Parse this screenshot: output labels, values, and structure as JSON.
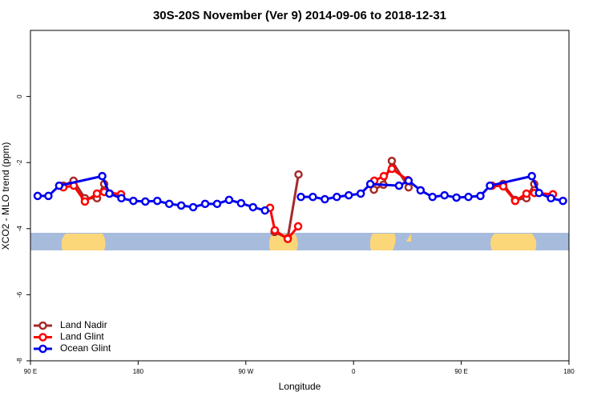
{
  "chart_data": {
    "type": "line",
    "title": "30S-20S November (Ver 9)   2014-09-06 to 2018-12-31",
    "xlabel": "Longitude",
    "ylabel": "XCO2 - MLO trend (ppm)",
    "xlim": [
      90,
      540
    ],
    "ylim": [
      -8,
      2
    ],
    "xticks": [
      {
        "value": 90,
        "label": "90 E"
      },
      180,
      {
        "value": 270,
        "label": "90 W"
      },
      {
        "value": 360,
        "label": "0"
      },
      {
        "value": 450,
        "label": "90 E"
      },
      {
        "value": 540,
        "label": "180"
      }
    ],
    "yticks": [
      -8,
      -6,
      -4,
      -2,
      0
    ],
    "legend": "lower left",
    "series": [
      {
        "name": "Land Nadir",
        "color": "#a52a2a",
        "x": [
          117.5,
          126,
          135.5,
          145.6,
          151.6,
          156.3,
          null,
          294,
          305,
          314,
          null,
          377,
          385,
          392,
          406,
          null,
          485,
          495,
          504.5,
          511
        ],
        "values": [
          -2.7,
          -2.55,
          -3.08,
          -3.08,
          -2.65,
          -2.94,
          null,
          -4.1,
          -4.29,
          -2.36,
          null,
          -2.82,
          -2.67,
          -1.95,
          -2.75,
          null,
          -2.65,
          -3.13,
          -3.08,
          -2.65
        ]
      },
      {
        "name": "Land Glint",
        "color": "#ff0000",
        "x": [
          117.5,
          126.2,
          135.5,
          145.6,
          151.6,
          165.7,
          null,
          290.2,
          294.2,
          305,
          313.7,
          null,
          377.3,
          385.3,
          392,
          405.4,
          null,
          475.7,
          485.1,
          495.1,
          504.5,
          511.2,
          526.6
        ],
        "values": [
          -2.75,
          -2.7,
          -3.18,
          -2.94,
          -2.89,
          -2.96,
          null,
          -3.37,
          -4.05,
          -4.31,
          -3.93,
          null,
          -2.55,
          -2.41,
          -2.19,
          -2.53,
          null,
          -2.7,
          -2.72,
          -3.16,
          -2.94,
          -2.92,
          -2.96
        ]
      },
      {
        "name": "Ocean Glint",
        "color": "#0000ee",
        "x": [
          96,
          105,
          114,
          150,
          156,
          166,
          176,
          186,
          196,
          206,
          216,
          226,
          236,
          246,
          256,
          266,
          276,
          286,
          null,
          316,
          326,
          336,
          346,
          356,
          366,
          374,
          398,
          406,
          416,
          426,
          436,
          446,
          456,
          466,
          474,
          509,
          515,
          525,
          535
        ],
        "values": [
          -3.01,
          -3.01,
          -2.7,
          -2.41,
          -2.94,
          -3.08,
          -3.16,
          -3.18,
          -3.16,
          -3.25,
          -3.3,
          -3.35,
          -3.25,
          -3.25,
          -3.13,
          -3.23,
          -3.35,
          -3.45,
          null,
          -3.04,
          -3.04,
          -3.11,
          -3.04,
          -2.99,
          -2.94,
          -2.65,
          -2.7,
          -2.55,
          -2.84,
          -3.04,
          -2.99,
          -3.06,
          -3.04,
          -3.01,
          -2.7,
          -2.41,
          -2.92,
          -3.08,
          -3.16
        ]
      }
    ]
  }
}
